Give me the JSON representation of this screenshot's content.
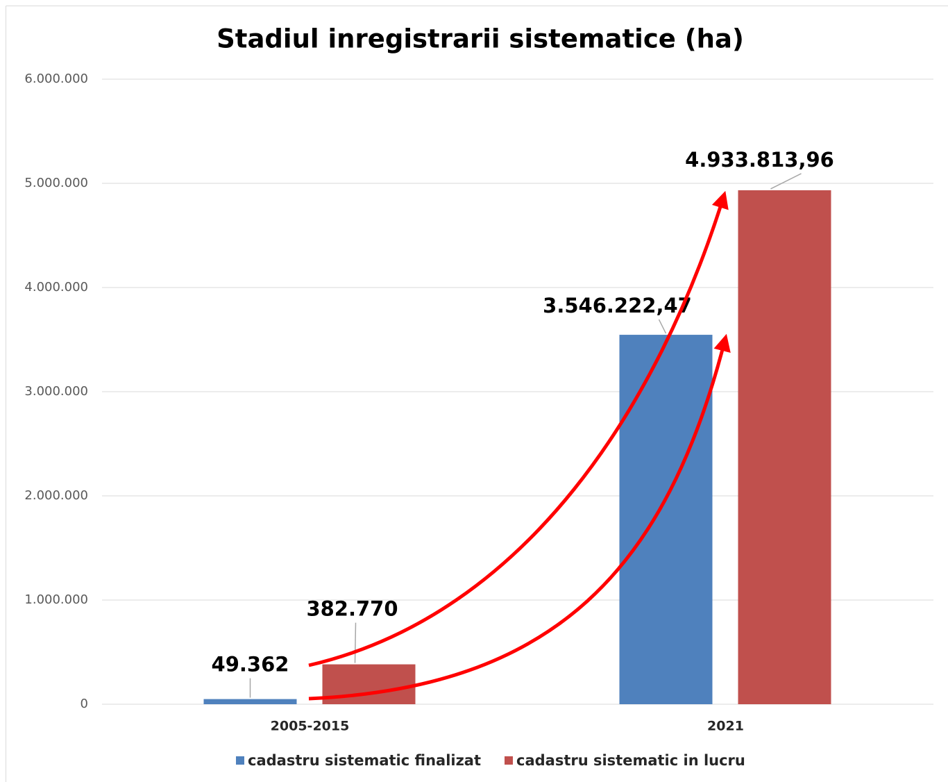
{
  "chart_data": {
    "type": "bar",
    "title": "Stadiul inregistrarii sistematice (ha)",
    "categories": [
      "2005-2015",
      "2021"
    ],
    "series": [
      {
        "name": "cadastru sistematic finalizat",
        "color": "#4f81bd",
        "values": [
          49362,
          3546222.47
        ],
        "value_labels": [
          "49.362",
          "3.546.222,47"
        ]
      },
      {
        "name": "cadastru sistematic in lucru",
        "color": "#c0504d",
        "values": [
          382770,
          4933813.96
        ],
        "value_labels": [
          "382.770",
          "4.933.813,96"
        ]
      }
    ],
    "ylim": [
      0,
      6000000
    ],
    "yticks": [
      0,
      {
        "value": 1000000,
        "label": "1.000.000"
      },
      {
        "value": 2000000,
        "label": "2.000.000"
      },
      {
        "value": 3000000,
        "label": "3.000.000"
      },
      {
        "value": 4000000,
        "label": "4.000.000"
      },
      {
        "value": 5000000,
        "label": "5.000.000"
      },
      {
        "value": 6000000,
        "label": "6.000.000"
      }
    ],
    "grid": true,
    "legend": "bottom"
  }
}
